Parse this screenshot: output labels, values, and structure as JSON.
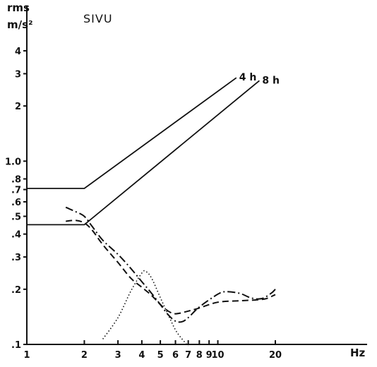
{
  "chart_data": {
    "type": "line",
    "title": "SIVU",
    "ylabel_line1": "rms",
    "ylabel_line2": "m/s²",
    "xlabel": "Hz",
    "xscale": "log",
    "yscale": "log",
    "xlim": [
      1,
      20
    ],
    "ylim": [
      0.1,
      4
    ],
    "grid": false,
    "x_ticks": [
      1,
      2,
      3,
      4,
      5,
      6,
      7,
      8,
      9,
      10,
      20
    ],
    "x_tick_labels": [
      "1",
      "2",
      "3",
      "4",
      "5",
      "6",
      "7",
      "8",
      "9",
      "10",
      "20"
    ],
    "y_ticks": [
      0.1,
      0.2,
      0.3,
      0.4,
      0.5,
      0.6,
      0.7,
      0.8,
      1.0,
      2,
      3,
      4
    ],
    "y_tick_labels": [
      ".1",
      ".2",
      ".3",
      ".4",
      ".5",
      ".6",
      ".7",
      ".8",
      "1.0",
      "2",
      "3",
      "4"
    ],
    "limit_curves": [
      {
        "name": "4 h",
        "style": "solid",
        "points": [
          [
            1,
            0.71
          ],
          [
            2,
            0.71
          ],
          [
            12.5,
            2.85
          ]
        ]
      },
      {
        "name": "8 h",
        "style": "solid",
        "points": [
          [
            1,
            0.45
          ],
          [
            2,
            0.45
          ],
          [
            16.5,
            2.75
          ]
        ]
      }
    ],
    "measured_curves": [
      {
        "style": "dashed",
        "points": [
          [
            1.6,
            0.47
          ],
          [
            1.8,
            0.475
          ],
          [
            2.0,
            0.46
          ],
          [
            2.2,
            0.42
          ],
          [
            2.5,
            0.35
          ],
          [
            3.0,
            0.28
          ],
          [
            3.5,
            0.23
          ],
          [
            4.0,
            0.205
          ],
          [
            4.5,
            0.185
          ],
          [
            5.0,
            0.165
          ],
          [
            5.5,
            0.152
          ],
          [
            6.0,
            0.147
          ],
          [
            7.0,
            0.152
          ],
          [
            8.0,
            0.158
          ],
          [
            10.0,
            0.17
          ],
          [
            13.0,
            0.173
          ],
          [
            16.0,
            0.175
          ],
          [
            18.0,
            0.178
          ],
          [
            20.0,
            0.187
          ]
        ]
      },
      {
        "style": "dash-dot",
        "points": [
          [
            1.6,
            0.56
          ],
          [
            1.8,
            0.53
          ],
          [
            2.0,
            0.5
          ],
          [
            2.2,
            0.44
          ],
          [
            2.5,
            0.37
          ],
          [
            3.0,
            0.31
          ],
          [
            3.5,
            0.26
          ],
          [
            4.0,
            0.22
          ],
          [
            4.5,
            0.19
          ],
          [
            5.0,
            0.165
          ],
          [
            5.5,
            0.145
          ],
          [
            6.0,
            0.134
          ],
          [
            6.5,
            0.133
          ],
          [
            7.0,
            0.14
          ],
          [
            8.0,
            0.16
          ],
          [
            10.0,
            0.188
          ],
          [
            11.0,
            0.194
          ],
          [
            13.0,
            0.19
          ],
          [
            15.0,
            0.179
          ],
          [
            17.0,
            0.178
          ],
          [
            19.0,
            0.19
          ],
          [
            20.0,
            0.2
          ]
        ]
      },
      {
        "style": "dotted",
        "points": [
          [
            2.5,
            0.107
          ],
          [
            3.0,
            0.14
          ],
          [
            3.5,
            0.195
          ],
          [
            4.0,
            0.245
          ],
          [
            4.2,
            0.25
          ],
          [
            4.5,
            0.23
          ],
          [
            5.0,
            0.18
          ],
          [
            5.5,
            0.145
          ],
          [
            6.0,
            0.12
          ],
          [
            6.5,
            0.107
          ],
          [
            7.0,
            0.098
          ]
        ]
      }
    ]
  }
}
